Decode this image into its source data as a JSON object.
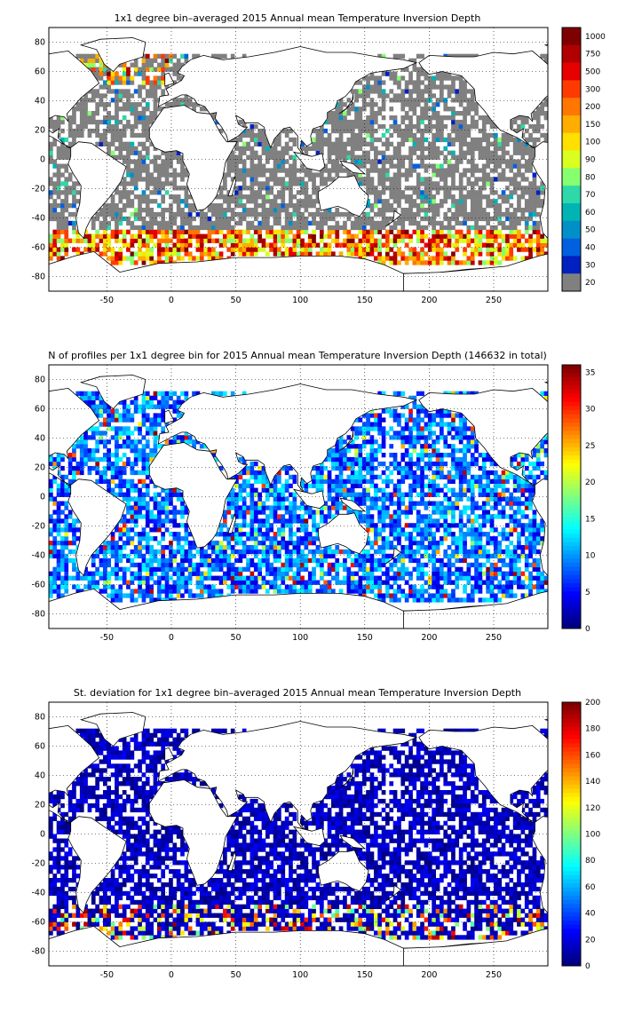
{
  "panels": [
    {
      "title": "1x1 degree bin–averaged 2015 Annual mean Temperature Inversion Depth",
      "x_ticks": [
        "-50",
        "0",
        "50",
        "100",
        "150",
        "200",
        "250"
      ],
      "y_ticks": [
        "80",
        "60",
        "40",
        "20",
        "0",
        "-20",
        "-40",
        "-60",
        "-80"
      ],
      "colorbar": {
        "type": "discrete",
        "labels": [
          "1000",
          "750",
          "500",
          "300",
          "200",
          "150",
          "100",
          "90",
          "80",
          "70",
          "60",
          "50",
          "40",
          "30",
          "20"
        ],
        "colors": [
          "#7f0000",
          "#b00000",
          "#e60000",
          "#ff3a00",
          "#ff7700",
          "#ffad00",
          "#ffe000",
          "#d8ff20",
          "#86ff70",
          "#2fd8a8",
          "#00b4b4",
          "#0090c8",
          "#0060e0",
          "#0020c0",
          "#808080"
        ]
      },
      "field": "mean"
    },
    {
      "title": "N of profiles per 1x1 degree bin for 2015 Annual mean Temperature Inversion Depth  (146632 in total)",
      "x_ticks": [
        "-50",
        "0",
        "50",
        "100",
        "150",
        "200",
        "250"
      ],
      "y_ticks": [
        "80",
        "60",
        "40",
        "20",
        "0",
        "-20",
        "-40",
        "-60",
        "-80"
      ],
      "colorbar": {
        "type": "continuous",
        "labels": [
          "35",
          "30",
          "25",
          "20",
          "15",
          "10",
          "5",
          "0"
        ],
        "min": 0,
        "max": 36
      },
      "field": "count"
    },
    {
      "title": "St. deviation for 1x1 degree bin–averaged 2015 Annual mean Temperature Inversion Depth",
      "x_ticks": [
        "-50",
        "0",
        "50",
        "100",
        "150",
        "200",
        "250"
      ],
      "y_ticks": [
        "80",
        "60",
        "40",
        "20",
        "0",
        "-20",
        "-40",
        "-60",
        "-80"
      ],
      "colorbar": {
        "type": "continuous",
        "labels": [
          "200",
          "180",
          "160",
          "140",
          "120",
          "100",
          "80",
          "60",
          "40",
          "20",
          "0"
        ],
        "min": 0,
        "max": 200
      },
      "field": "std"
    }
  ],
  "map": {
    "lon_range": [
      -95,
      292
    ],
    "lat_range": [
      -90,
      90
    ],
    "x_tick_values": [
      -50,
      0,
      50,
      100,
      150,
      200,
      250
    ],
    "y_tick_values": [
      80,
      60,
      40,
      20,
      0,
      -20,
      -40,
      -60,
      -80
    ],
    "colors": {
      "land": "#ffffff",
      "coast": "#000000",
      "grid": "#000000"
    }
  }
}
